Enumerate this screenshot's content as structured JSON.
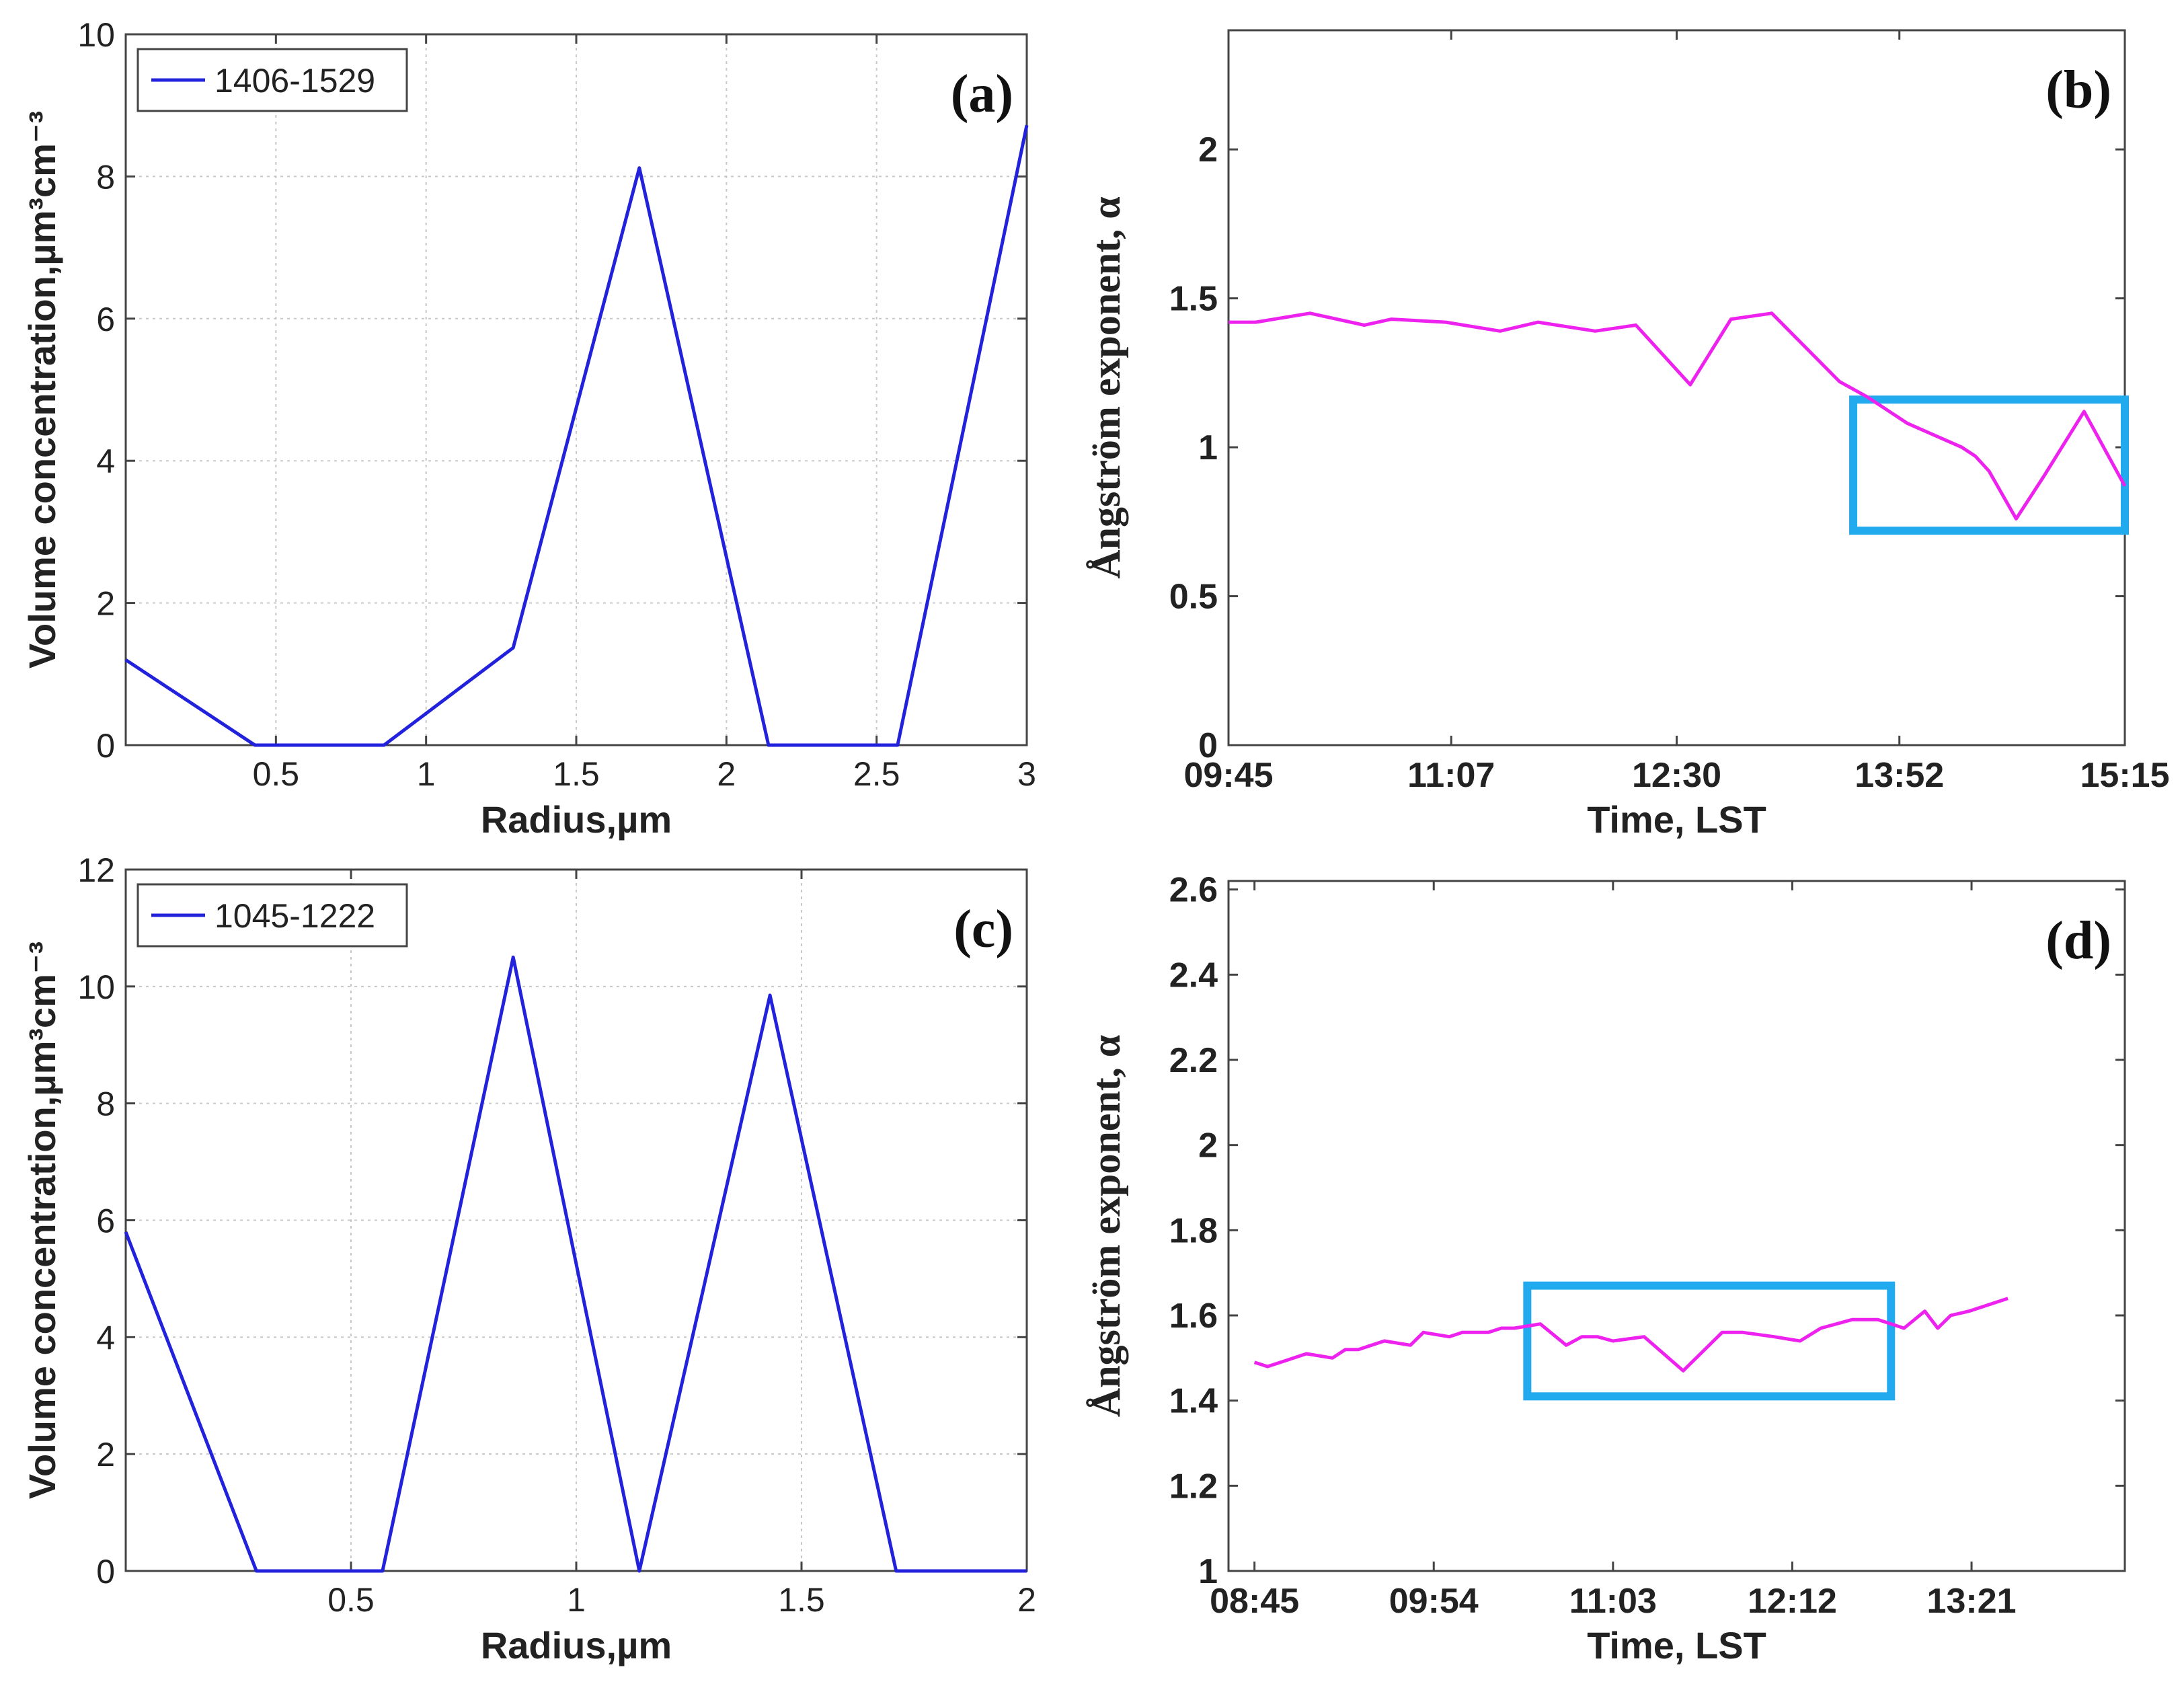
{
  "figure": {
    "panels": [
      {
        "tag": "(a)"
      },
      {
        "tag": "(b)"
      },
      {
        "tag": "(c)"
      },
      {
        "tag": "(d)"
      }
    ]
  },
  "chart_data": [
    {
      "panel": "(a)",
      "type": "line",
      "xlabel": "Radius,µm",
      "ylabel": "Volume concentration,µm³cm⁻³",
      "xlim": [
        0,
        3
      ],
      "ylim": [
        0,
        10
      ],
      "xticks": [
        0.5,
        1,
        1.5,
        2,
        2.5,
        3
      ],
      "xtick_labels": [
        "0.5",
        "1",
        "1.5",
        "2",
        "2.5",
        "3"
      ],
      "yticks": [
        0,
        2,
        4,
        6,
        8,
        10
      ],
      "ytick_labels": [
        "0",
        "2",
        "4",
        "6",
        "8",
        "10"
      ],
      "grid": true,
      "legend": "top-left",
      "series": [
        {
          "name": "1406-1529",
          "color": "#2222dd",
          "x": [
            0,
            0.43,
            0.86,
            1.29,
            1.71,
            2.14,
            2.57,
            3.0
          ],
          "y": [
            1.2,
            0,
            0,
            1.37,
            8.12,
            0,
            0,
            8.72
          ]
        }
      ]
    },
    {
      "panel": "(b)",
      "type": "line",
      "xlabel": "Time, LST",
      "ylabel": "Ångström exponent, α",
      "xlim": [
        0,
        330
      ],
      "ylim": [
        0,
        2.4
      ],
      "xticks": [
        0,
        82,
        165,
        247,
        330
      ],
      "xtick_labels": [
        "09:45",
        "11:07",
        "12:30",
        "13:52",
        "15:15"
      ],
      "yticks": [
        0,
        0.5,
        1,
        1.5,
        2
      ],
      "ytick_labels": [
        "0",
        "0.5",
        "1",
        "1.5",
        "2"
      ],
      "grid": false,
      "highlight_box": {
        "x": [
          230,
          330
        ],
        "y": [
          0.72,
          1.16
        ],
        "color": "#22aaee"
      },
      "series": [
        {
          "name": "Angstrom exponent",
          "color": "#ee22ee",
          "x": [
            0,
            10,
            30,
            50,
            60,
            80,
            100,
            114,
            135,
            150,
            170,
            185,
            200,
            225,
            235,
            250,
            270,
            275,
            280,
            290,
            300,
            315,
            330
          ],
          "y": [
            1.42,
            1.42,
            1.45,
            1.41,
            1.43,
            1.42,
            1.39,
            1.42,
            1.39,
            1.41,
            1.21,
            1.43,
            1.45,
            1.22,
            1.17,
            1.08,
            1.0,
            0.97,
            0.92,
            0.76,
            0.9,
            1.12,
            0.87
          ]
        }
      ]
    },
    {
      "panel": "(c)",
      "type": "line",
      "xlabel": "Radius,µm",
      "ylabel": "Volume concentration,µm³cm⁻³",
      "xlim": [
        0,
        2
      ],
      "ylim": [
        0,
        12
      ],
      "xticks": [
        0.5,
        1,
        1.5,
        2
      ],
      "xtick_labels": [
        "0.5",
        "1",
        "1.5",
        "2"
      ],
      "yticks": [
        0,
        2,
        4,
        6,
        8,
        10,
        12
      ],
      "ytick_labels": [
        "0",
        "2",
        "4",
        "6",
        "8",
        "10",
        "12"
      ],
      "grid": true,
      "legend": "top-left",
      "series": [
        {
          "name": "1045-1222",
          "color": "#2222dd",
          "x": [
            0,
            0.29,
            0.57,
            0.86,
            1.14,
            1.43,
            1.71,
            2.0
          ],
          "y": [
            5.8,
            0,
            0,
            10.5,
            0,
            9.85,
            0,
            0
          ]
        }
      ]
    },
    {
      "panel": "(d)",
      "type": "line",
      "xlabel": "Time, LST",
      "ylabel": "Ångström exponent, α",
      "xlim": [
        -10,
        335
      ],
      "ylim": [
        1.0,
        2.62
      ],
      "xticks": [
        0,
        69,
        138,
        207,
        276
      ],
      "xtick_labels": [
        "08:45",
        "09:54",
        "11:03",
        "12:12",
        "13:21"
      ],
      "yticks": [
        1,
        1.2,
        1.4,
        1.6,
        1.8,
        2,
        2.2,
        2.4,
        2.6
      ],
      "ytick_labels": [
        "1",
        "1.2",
        "1.4",
        "1.6",
        "1.8",
        "2",
        "2.2",
        "2.4",
        "2.6"
      ],
      "grid": false,
      "highlight_box": {
        "x": [
          105,
          245
        ],
        "y": [
          1.41,
          1.67
        ],
        "color": "#22aaee"
      },
      "series": [
        {
          "name": "Angstrom exponent",
          "color": "#ee22ee",
          "x": [
            0,
            5,
            10,
            20,
            30,
            35,
            40,
            50,
            60,
            65,
            75,
            80,
            85,
            90,
            95,
            100,
            110,
            120,
            126,
            132,
            138,
            150,
            165,
            180,
            188,
            200,
            210,
            218,
            230,
            240,
            250,
            258,
            263,
            268,
            275,
            290
          ],
          "y": [
            1.49,
            1.48,
            1.49,
            1.51,
            1.5,
            1.52,
            1.52,
            1.54,
            1.53,
            1.56,
            1.55,
            1.56,
            1.56,
            1.56,
            1.57,
            1.57,
            1.58,
            1.53,
            1.55,
            1.55,
            1.54,
            1.55,
            1.47,
            1.56,
            1.56,
            1.55,
            1.54,
            1.57,
            1.59,
            1.59,
            1.57,
            1.61,
            1.57,
            1.6,
            1.61,
            1.64
          ]
        }
      ]
    }
  ]
}
